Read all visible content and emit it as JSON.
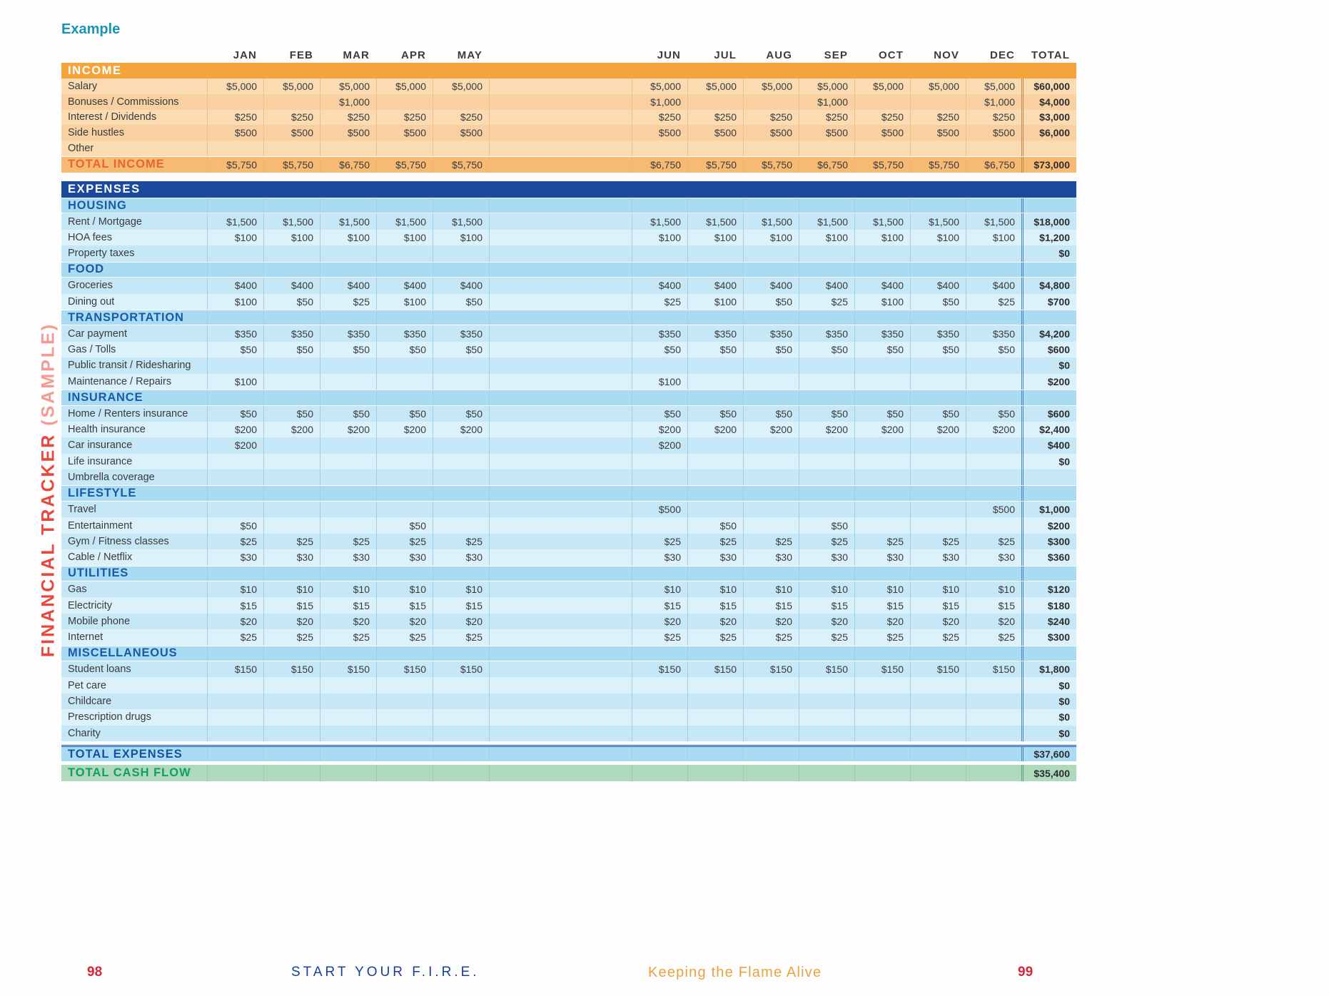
{
  "page": {
    "example_label": "Example"
  },
  "sidebar": {
    "title": "FINANCIAL TRACKER",
    "suffix": "(SAMPLE)"
  },
  "table": {
    "months": [
      "JAN",
      "FEB",
      "MAR",
      "APR",
      "MAY",
      "JUN",
      "JUL",
      "AUG",
      "SEP",
      "OCT",
      "NOV",
      "DEC"
    ],
    "total_header": "TOTAL",
    "income": {
      "header": "INCOME",
      "rows": [
        {
          "label": "Salary",
          "values": [
            "$5,000",
            "$5,000",
            "$5,000",
            "$5,000",
            "$5,000",
            "$5,000",
            "$5,000",
            "$5,000",
            "$5,000",
            "$5,000",
            "$5,000",
            "$5,000"
          ],
          "total": "$60,000"
        },
        {
          "label": "Bonuses / Commissions",
          "values": [
            "",
            "",
            "$1,000",
            "",
            "",
            "$1,000",
            "",
            "",
            "$1,000",
            "",
            "",
            "$1,000"
          ],
          "total": "$4,000"
        },
        {
          "label": "Interest / Dividends",
          "values": [
            "$250",
            "$250",
            "$250",
            "$250",
            "$250",
            "$250",
            "$250",
            "$250",
            "$250",
            "$250",
            "$250",
            "$250"
          ],
          "total": "$3,000"
        },
        {
          "label": "Side hustles",
          "values": [
            "$500",
            "$500",
            "$500",
            "$500",
            "$500",
            "$500",
            "$500",
            "$500",
            "$500",
            "$500",
            "$500",
            "$500"
          ],
          "total": "$6,000"
        },
        {
          "label": "Other",
          "values": [
            "",
            "",
            "",
            "",
            "",
            "",
            "",
            "",
            "",
            "",
            "",
            ""
          ],
          "total": ""
        }
      ],
      "total_row": {
        "label": "TOTAL INCOME",
        "values": [
          "$5,750",
          "$5,750",
          "$6,750",
          "$5,750",
          "$5,750",
          "$6,750",
          "$5,750",
          "$5,750",
          "$6,750",
          "$5,750",
          "$5,750",
          "$6,750"
        ],
        "total": "$73,000"
      }
    },
    "expenses": {
      "header": "EXPENSES",
      "subsections": [
        {
          "name": "HOUSING",
          "rows": [
            {
              "label": "Rent / Mortgage",
              "values": [
                "$1,500",
                "$1,500",
                "$1,500",
                "$1,500",
                "$1,500",
                "$1,500",
                "$1,500",
                "$1,500",
                "$1,500",
                "$1,500",
                "$1,500",
                "$1,500"
              ],
              "total": "$18,000"
            },
            {
              "label": "HOA fees",
              "values": [
                "$100",
                "$100",
                "$100",
                "$100",
                "$100",
                "$100",
                "$100",
                "$100",
                "$100",
                "$100",
                "$100",
                "$100"
              ],
              "total": "$1,200"
            },
            {
              "label": "Property taxes",
              "values": [
                "",
                "",
                "",
                "",
                "",
                "",
                "",
                "",
                "",
                "",
                "",
                ""
              ],
              "total": "$0"
            }
          ]
        },
        {
          "name": "FOOD",
          "rows": [
            {
              "label": "Groceries",
              "values": [
                "$400",
                "$400",
                "$400",
                "$400",
                "$400",
                "$400",
                "$400",
                "$400",
                "$400",
                "$400",
                "$400",
                "$400"
              ],
              "total": "$4,800"
            },
            {
              "label": "Dining out",
              "values": [
                "$100",
                "$50",
                "$25",
                "$100",
                "$50",
                "$25",
                "$100",
                "$50",
                "$25",
                "$100",
                "$50",
                "$25"
              ],
              "total": "$700"
            }
          ]
        },
        {
          "name": "TRANSPORTATION",
          "rows": [
            {
              "label": "Car payment",
              "values": [
                "$350",
                "$350",
                "$350",
                "$350",
                "$350",
                "$350",
                "$350",
                "$350",
                "$350",
                "$350",
                "$350",
                "$350"
              ],
              "total": "$4,200"
            },
            {
              "label": "Gas / Tolls",
              "values": [
                "$50",
                "$50",
                "$50",
                "$50",
                "$50",
                "$50",
                "$50",
                "$50",
                "$50",
                "$50",
                "$50",
                "$50"
              ],
              "total": "$600"
            },
            {
              "label": "Public transit / Ridesharing",
              "values": [
                "",
                "",
                "",
                "",
                "",
                "",
                "",
                "",
                "",
                "",
                "",
                ""
              ],
              "total": "$0"
            },
            {
              "label": "Maintenance / Repairs",
              "values": [
                "$100",
                "",
                "",
                "",
                "",
                "$100",
                "",
                "",
                "",
                "",
                "",
                ""
              ],
              "total": "$200"
            }
          ]
        },
        {
          "name": "INSURANCE",
          "rows": [
            {
              "label": "Home / Renters insurance",
              "values": [
                "$50",
                "$50",
                "$50",
                "$50",
                "$50",
                "$50",
                "$50",
                "$50",
                "$50",
                "$50",
                "$50",
                "$50"
              ],
              "total": "$600"
            },
            {
              "label": "Health insurance",
              "values": [
                "$200",
                "$200",
                "$200",
                "$200",
                "$200",
                "$200",
                "$200",
                "$200",
                "$200",
                "$200",
                "$200",
                "$200"
              ],
              "total": "$2,400"
            },
            {
              "label": "Car insurance",
              "values": [
                "$200",
                "",
                "",
                "",
                "",
                "$200",
                "",
                "",
                "",
                "",
                "",
                ""
              ],
              "total": "$400"
            },
            {
              "label": "Life insurance",
              "values": [
                "",
                "",
                "",
                "",
                "",
                "",
                "",
                "",
                "",
                "",
                "",
                ""
              ],
              "total": "$0"
            },
            {
              "label": "Umbrella coverage",
              "values": [
                "",
                "",
                "",
                "",
                "",
                "",
                "",
                "",
                "",
                "",
                "",
                ""
              ],
              "total": ""
            }
          ]
        },
        {
          "name": "LIFESTYLE",
          "rows": [
            {
              "label": "Travel",
              "values": [
                "",
                "",
                "",
                "",
                "",
                "$500",
                "",
                "",
                "",
                "",
                "",
                "$500"
              ],
              "total": "$1,000"
            },
            {
              "label": "Entertainment",
              "values": [
                "$50",
                "",
                "",
                "$50",
                "",
                "",
                "$50",
                "",
                "$50",
                "",
                "",
                ""
              ],
              "total": "$200"
            },
            {
              "label": "Gym / Fitness classes",
              "values": [
                "$25",
                "$25",
                "$25",
                "$25",
                "$25",
                "$25",
                "$25",
                "$25",
                "$25",
                "$25",
                "$25",
                "$25"
              ],
              "total": "$300"
            },
            {
              "label": "Cable / Netflix",
              "values": [
                "$30",
                "$30",
                "$30",
                "$30",
                "$30",
                "$30",
                "$30",
                "$30",
                "$30",
                "$30",
                "$30",
                "$30"
              ],
              "total": "$360"
            }
          ]
        },
        {
          "name": "UTILITIES",
          "rows": [
            {
              "label": "Gas",
              "values": [
                "$10",
                "$10",
                "$10",
                "$10",
                "$10",
                "$10",
                "$10",
                "$10",
                "$10",
                "$10",
                "$10",
                "$10"
              ],
              "total": "$120"
            },
            {
              "label": "Electricity",
              "values": [
                "$15",
                "$15",
                "$15",
                "$15",
                "$15",
                "$15",
                "$15",
                "$15",
                "$15",
                "$15",
                "$15",
                "$15"
              ],
              "total": "$180"
            },
            {
              "label": "Mobile phone",
              "values": [
                "$20",
                "$20",
                "$20",
                "$20",
                "$20",
                "$20",
                "$20",
                "$20",
                "$20",
                "$20",
                "$20",
                "$20"
              ],
              "total": "$240"
            },
            {
              "label": "Internet",
              "values": [
                "$25",
                "$25",
                "$25",
                "$25",
                "$25",
                "$25",
                "$25",
                "$25",
                "$25",
                "$25",
                "$25",
                "$25"
              ],
              "total": "$300"
            }
          ]
        },
        {
          "name": "MISCELLANEOUS",
          "rows": [
            {
              "label": "Student loans",
              "values": [
                "$150",
                "$150",
                "$150",
                "$150",
                "$150",
                "$150",
                "$150",
                "$150",
                "$150",
                "$150",
                "$150",
                "$150"
              ],
              "total": "$1,800"
            },
            {
              "label": "Pet care",
              "values": [
                "",
                "",
                "",
                "",
                "",
                "",
                "",
                "",
                "",
                "",
                "",
                ""
              ],
              "total": "$0"
            },
            {
              "label": "Childcare",
              "values": [
                "",
                "",
                "",
                "",
                "",
                "",
                "",
                "",
                "",
                "",
                "",
                ""
              ],
              "total": "$0"
            },
            {
              "label": "Prescription drugs",
              "values": [
                "",
                "",
                "",
                "",
                "",
                "",
                "",
                "",
                "",
                "",
                "",
                ""
              ],
              "total": "$0"
            },
            {
              "label": "Charity",
              "values": [
                "",
                "",
                "",
                "",
                "",
                "",
                "",
                "",
                "",
                "",
                "",
                ""
              ],
              "total": "$0"
            }
          ]
        }
      ],
      "total_row": {
        "label": "TOTAL EXPENSES",
        "values": [
          "",
          "",
          "",
          "",
          "",
          "",
          "",
          "",
          "",
          "",
          "",
          ""
        ],
        "total": "$37,600"
      }
    },
    "cash_flow_row": {
      "label": "TOTAL CASH FLOW",
      "values": [
        "",
        "",
        "",
        "",
        "",
        "",
        "",
        "",
        "",
        "",
        "",
        ""
      ],
      "total": "$35,400"
    }
  },
  "footer": {
    "page_left": "98",
    "book_title": "START YOUR F.I.R.E.",
    "section_title": "Keeping the Flame Alive",
    "page_right": "99"
  },
  "colors": {
    "accent_teal": "#1795B4",
    "income_header_bg": "#F5A43C",
    "income_row_light": "#FBDBB1",
    "income_row_dark": "#F8D0A2",
    "income_total_bg": "#F7BA74",
    "income_total_label": "#E8662B",
    "expenses_header_bg": "#1B4A9D",
    "subsection_bg": "#A9DCF3",
    "subsection_label": "#1A5AA6",
    "expense_row_dark": "#C6E7F6",
    "expense_row_light": "#DCF2FB",
    "cash_flow_bg": "#AED9BB",
    "cash_flow_label": "#0FA05C",
    "page_number_red": "#D7263B",
    "book_title_navy": "#1C3F94",
    "section_title_orange": "#E9A23E",
    "sidebar_red": "#E9473E",
    "sidebar_pink": "#F29B93"
  }
}
